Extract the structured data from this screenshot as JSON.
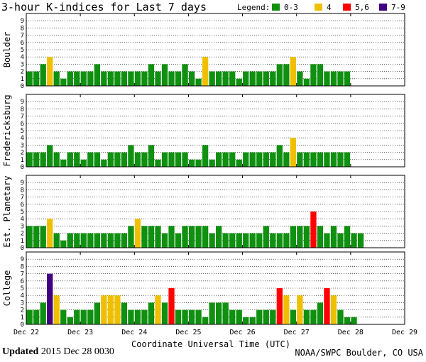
{
  "chart_data": {
    "type": "bar",
    "title": "3-hour K-indices for Last 7 days",
    "legend": {
      "label": "Legend:",
      "placement": "top-right",
      "entries": [
        {
          "label": "0-3",
          "color": "#109010"
        },
        {
          "label": "4",
          "color": "#f0c000"
        },
        {
          "label": "5,6",
          "color": "#ff0000"
        },
        {
          "label": "7-9",
          "color": "#400080"
        }
      ]
    },
    "xlabel": "Coordinate Universal Time (UTC)",
    "x_ticks": [
      "Dec 22",
      "Dec 23",
      "Dec 24",
      "Dec 25",
      "Dec 26",
      "Dec 27",
      "Dec 28",
      "Dec 29"
    ],
    "y_ticks": [
      "0",
      "1",
      "2",
      "3",
      "4",
      "5",
      "6",
      "7",
      "8",
      "9"
    ],
    "ylim": [
      0,
      9
    ],
    "grid": "horizontal dotted",
    "panels": [
      {
        "name": "Boulder",
        "values": [
          2,
          2,
          3,
          4,
          2,
          1,
          2,
          2,
          2,
          2,
          3,
          2,
          2,
          2,
          2,
          2,
          2,
          2,
          3,
          2,
          3,
          2,
          2,
          3,
          2,
          1,
          4,
          2,
          2,
          2,
          2,
          1,
          2,
          2,
          2,
          2,
          2,
          3,
          3,
          4,
          2,
          1,
          3,
          3,
          2,
          2,
          2,
          2
        ]
      },
      {
        "name": "Fredericksburg",
        "values": [
          2,
          2,
          2,
          3,
          2,
          1,
          2,
          2,
          1,
          2,
          2,
          1,
          2,
          2,
          2,
          3,
          2,
          2,
          3,
          1,
          2,
          2,
          2,
          2,
          1,
          1,
          3,
          1,
          2,
          2,
          2,
          1,
          2,
          2,
          2,
          2,
          2,
          3,
          2,
          4,
          2,
          2,
          2,
          2,
          2,
          2,
          2,
          2
        ]
      },
      {
        "name": "Est. Planetary",
        "values": [
          3,
          3,
          3,
          4,
          2,
          1,
          2,
          2,
          2,
          2,
          2,
          2,
          2,
          2,
          2,
          3,
          4,
          3,
          3,
          3,
          2,
          3,
          2,
          3,
          3,
          3,
          3,
          2,
          3,
          2,
          2,
          2,
          2,
          2,
          2,
          3,
          2,
          2,
          2,
          3,
          3,
          3,
          5,
          3,
          2,
          3,
          2,
          3,
          2,
          2
        ]
      },
      {
        "name": "College",
        "values": [
          2,
          2,
          3,
          7,
          4,
          2,
          1,
          2,
          2,
          2,
          3,
          4,
          4,
          4,
          3,
          2,
          2,
          2,
          3,
          4,
          3,
          5,
          2,
          2,
          2,
          2,
          1,
          3,
          3,
          3,
          2,
          2,
          1,
          1,
          2,
          2,
          2,
          5,
          4,
          2,
          4,
          2,
          2,
          3,
          5,
          4,
          2,
          1,
          1
        ]
      }
    ]
  },
  "footer": {
    "updated_label": "Updated",
    "updated_value": "2015 Dec 28 0030",
    "credit": "NOAA/SWPC Boulder, CO USA"
  }
}
